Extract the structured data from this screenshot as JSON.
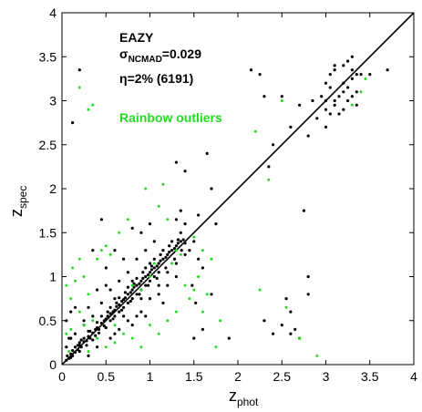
{
  "chart_data": {
    "type": "scatter",
    "title": "",
    "x_axis": {
      "label_main": "z",
      "label_sub": "phot",
      "range": [
        0,
        4
      ],
      "ticks": [
        "0",
        "0.5",
        "1",
        "1.5",
        "2",
        "2.5",
        "3",
        "3.5",
        "4"
      ]
    },
    "y_axis": {
      "label_main": "z",
      "label_sub": "spec",
      "range": [
        0,
        4
      ],
      "ticks": [
        "0",
        "0.5",
        "1",
        "1.5",
        "2",
        "2.5",
        "3",
        "3.5",
        "4"
      ]
    },
    "grid": false,
    "reference_line": {
      "x": [
        0,
        4
      ],
      "y": [
        0,
        4
      ]
    },
    "annotations": {
      "method": "EAZY",
      "sigma_symbol": "σ",
      "sigma_sub": "NCMAD",
      "sigma_value": "=0.029",
      "eta_symbol": "η",
      "eta_value": "=2% (6191)",
      "outlier_label": "Rainbow outliers"
    },
    "colors": {
      "main": "#000000",
      "outliers": "#22dd22"
    },
    "series": [
      {
        "name": "",
        "color": "#000000",
        "points": [
          [
            0.05,
            0.05
          ],
          [
            0.08,
            0.07
          ],
          [
            0.1,
            0.12
          ],
          [
            0.12,
            0.1
          ],
          [
            0.15,
            0.14
          ],
          [
            0.18,
            0.17
          ],
          [
            0.2,
            0.22
          ],
          [
            0.22,
            0.2
          ],
          [
            0.25,
            0.26
          ],
          [
            0.28,
            0.27
          ],
          [
            0.3,
            0.32
          ],
          [
            0.32,
            0.3
          ],
          [
            0.35,
            0.36
          ],
          [
            0.38,
            0.4
          ],
          [
            0.4,
            0.42
          ],
          [
            0.42,
            0.4
          ],
          [
            0.45,
            0.47
          ],
          [
            0.48,
            0.5
          ],
          [
            0.5,
            0.52
          ],
          [
            0.52,
            0.55
          ],
          [
            0.55,
            0.58
          ],
          [
            0.58,
            0.6
          ],
          [
            0.6,
            0.62
          ],
          [
            0.62,
            0.66
          ],
          [
            0.65,
            0.68
          ],
          [
            0.68,
            0.72
          ],
          [
            0.7,
            0.74
          ],
          [
            0.72,
            0.76
          ],
          [
            0.75,
            0.8
          ],
          [
            0.78,
            0.82
          ],
          [
            0.8,
            0.85
          ],
          [
            0.82,
            0.88
          ],
          [
            0.85,
            0.9
          ],
          [
            0.88,
            0.92
          ],
          [
            0.9,
            0.95
          ],
          [
            0.92,
            0.98
          ],
          [
            0.95,
            1.0
          ],
          [
            0.98,
            1.02
          ],
          [
            1.0,
            1.05
          ],
          [
            1.02,
            1.08
          ],
          [
            1.05,
            1.1
          ],
          [
            1.08,
            1.12
          ],
          [
            1.1,
            1.15
          ],
          [
            1.12,
            1.18
          ],
          [
            1.15,
            1.2
          ],
          [
            1.18,
            1.22
          ],
          [
            1.2,
            1.25
          ],
          [
            1.22,
            1.28
          ],
          [
            1.25,
            1.3
          ],
          [
            1.28,
            1.32
          ],
          [
            1.3,
            1.35
          ],
          [
            1.32,
            1.38
          ],
          [
            1.35,
            1.4
          ],
          [
            1.38,
            1.42
          ],
          [
            0.5,
            0.42
          ],
          [
            0.55,
            0.5
          ],
          [
            0.6,
            0.55
          ],
          [
            0.65,
            0.6
          ],
          [
            0.7,
            0.65
          ],
          [
            0.75,
            0.7
          ],
          [
            0.8,
            0.75
          ],
          [
            0.85,
            0.8
          ],
          [
            0.9,
            0.85
          ],
          [
            0.95,
            0.9
          ],
          [
            1.0,
            0.95
          ],
          [
            1.05,
            1.0
          ],
          [
            1.1,
            1.05
          ],
          [
            0.4,
            0.48
          ],
          [
            0.45,
            0.55
          ],
          [
            0.55,
            0.65
          ],
          [
            0.65,
            0.76
          ],
          [
            0.75,
            0.88
          ],
          [
            0.85,
            0.98
          ],
          [
            0.95,
            1.1
          ],
          [
            1.05,
            1.2
          ],
          [
            1.15,
            1.3
          ],
          [
            0.3,
            0.38
          ],
          [
            0.35,
            0.28
          ],
          [
            0.25,
            0.3
          ],
          [
            0.2,
            0.15
          ],
          [
            0.15,
            0.2
          ],
          [
            0.1,
            0.08
          ],
          [
            0.06,
            0.1
          ],
          [
            0.12,
            0.16
          ],
          [
            0.18,
            0.22
          ],
          [
            0.22,
            0.28
          ],
          [
            0.28,
            0.22
          ],
          [
            0.32,
            0.38
          ],
          [
            0.38,
            0.33
          ],
          [
            0.42,
            0.36
          ],
          [
            0.48,
            0.44
          ],
          [
            0.52,
            0.6
          ],
          [
            0.58,
            0.52
          ],
          [
            0.62,
            0.7
          ],
          [
            0.68,
            0.62
          ],
          [
            0.72,
            0.82
          ],
          [
            0.78,
            0.72
          ],
          [
            0.82,
            0.92
          ],
          [
            0.88,
            0.8
          ],
          [
            0.92,
            1.05
          ],
          [
            0.98,
            0.9
          ],
          [
            1.02,
            1.12
          ],
          [
            1.08,
            0.98
          ],
          [
            1.12,
            1.25
          ],
          [
            1.18,
            1.1
          ],
          [
            1.22,
            1.35
          ],
          [
            1.28,
            1.2
          ],
          [
            1.32,
            1.42
          ],
          [
            1.36,
            1.3
          ],
          [
            1.4,
            1.38
          ],
          [
            0.6,
            0.75
          ],
          [
            0.7,
            0.55
          ],
          [
            0.8,
            0.95
          ],
          [
            0.9,
            0.75
          ],
          [
            1.0,
            1.15
          ],
          [
            1.1,
            0.9
          ],
          [
            1.2,
            1.05
          ],
          [
            1.3,
            1.15
          ],
          [
            1.25,
            1.4
          ],
          [
            1.35,
            1.5
          ],
          [
            1.4,
            1.25
          ],
          [
            1.45,
            1.3
          ],
          [
            1.5,
            1.4
          ],
          [
            1.55,
            1.2
          ],
          [
            1.48,
            0.9
          ],
          [
            1.52,
            0.7
          ],
          [
            1.6,
            1.1
          ],
          [
            0.75,
            1.05
          ],
          [
            0.85,
            1.2
          ],
          [
            0.65,
            0.95
          ],
          [
            0.55,
            0.85
          ],
          [
            0.95,
            1.3
          ],
          [
            1.05,
            1.4
          ],
          [
            0.45,
            0.7
          ],
          [
            0.35,
            0.55
          ],
          [
            0.25,
            0.45
          ],
          [
            0.55,
            0.3
          ],
          [
            0.65,
            0.4
          ],
          [
            0.75,
            0.5
          ],
          [
            0.85,
            0.55
          ],
          [
            0.9,
            0.6
          ],
          [
            1.0,
            0.75
          ],
          [
            1.1,
            0.8
          ],
          [
            1.2,
            0.9
          ],
          [
            1.3,
            1.0
          ],
          [
            0.5,
            1.1
          ],
          [
            0.6,
            0.35
          ],
          [
            0.8,
            0.45
          ],
          [
            0.95,
            0.55
          ],
          [
            1.15,
            0.7
          ],
          [
            0.2,
            3.35
          ],
          [
            0.15,
            0.35
          ],
          [
            0.3,
            0.1
          ],
          [
            0.4,
            0.2
          ],
          [
            0.1,
            0.3
          ],
          [
            0.05,
            0.2
          ],
          [
            0.5,
            0.9
          ],
          [
            0.7,
            1.2
          ],
          [
            0.3,
            0.65
          ],
          [
            0.4,
            0.85
          ],
          [
            0.45,
            1.65
          ],
          [
            0.9,
            1.5
          ],
          [
            1.0,
            1.6
          ],
          [
            1.4,
            1.6
          ],
          [
            1.55,
            1.7
          ],
          [
            1.6,
            0.4
          ],
          [
            1.5,
            0.3
          ],
          [
            1.7,
            0.8
          ],
          [
            0.8,
            1.55
          ],
          [
            1.3,
            1.65
          ],
          [
            1.65,
            2.4
          ],
          [
            1.75,
            1.6
          ],
          [
            1.35,
            1.75
          ],
          [
            0.35,
            1.3
          ],
          [
            0.6,
            1.3
          ],
          [
            1.7,
            2.0
          ],
          [
            1.9,
            0.3
          ],
          [
            2.4,
            0.35
          ],
          [
            2.3,
            0.5
          ],
          [
            2.5,
            0.45
          ],
          [
            2.6,
            0.6
          ],
          [
            2.65,
            0.4
          ],
          [
            2.7,
            0.3
          ],
          [
            2.8,
            0.8
          ],
          [
            2.6,
            2.7
          ],
          [
            2.3,
            3.05
          ],
          [
            2.5,
            3.05
          ],
          [
            2.4,
            2.5
          ],
          [
            2.35,
            2.25
          ],
          [
            2.8,
            1.0
          ],
          [
            2.55,
            0.75
          ],
          [
            1.3,
            2.3
          ],
          [
            1.4,
            2.2
          ],
          [
            0.15,
            0.65
          ],
          [
            0.25,
            0.5
          ],
          [
            0.05,
            0.5
          ],
          [
            0.08,
            0.3
          ],
          [
            0.2,
            0.25
          ],
          [
            0.1,
            0.6
          ],
          [
            0.12,
            2.75
          ],
          [
            2.6,
            0.35
          ],
          [
            3.35,
            2.95
          ],
          [
            2.9,
            2.8
          ],
          [
            3.0,
            2.9
          ],
          [
            3.05,
            2.85
          ],
          [
            3.1,
            3.0
          ],
          [
            3.15,
            3.05
          ],
          [
            3.2,
            3.1
          ],
          [
            3.25,
            3.15
          ],
          [
            3.3,
            3.25
          ],
          [
            3.35,
            3.3
          ],
          [
            3.0,
            3.2
          ],
          [
            3.1,
            3.35
          ],
          [
            3.2,
            3.4
          ],
          [
            3.25,
            3.45
          ],
          [
            3.3,
            3.05
          ],
          [
            3.2,
            2.9
          ],
          [
            3.15,
            2.85
          ],
          [
            2.95,
            3.05
          ],
          [
            3.05,
            3.15
          ],
          [
            3.1,
            2.95
          ],
          [
            3.25,
            3.0
          ],
          [
            3.35,
            3.1
          ],
          [
            3.2,
            3.2
          ],
          [
            3.3,
            3.35
          ],
          [
            3.4,
            3.3
          ],
          [
            2.75,
            1.75
          ],
          [
            3.5,
            3.3
          ],
          [
            3.7,
            3.35
          ],
          [
            2.8,
            2.6
          ],
          [
            3.0,
            3.0
          ],
          [
            3.05,
            3.3
          ],
          [
            2.85,
            3.0
          ],
          [
            2.7,
            2.95
          ],
          [
            3.0,
            2.7
          ],
          [
            2.25,
            3.3
          ],
          [
            2.15,
            3.35
          ],
          [
            3.1,
            3.4
          ],
          [
            3.3,
            3.5
          ]
        ]
      },
      {
        "name": "Rainbow outliers",
        "color": "#22dd22",
        "points": [
          [
            0.2,
            3.15
          ],
          [
            0.3,
            2.9
          ],
          [
            0.35,
            2.95
          ],
          [
            0.5,
            1.35
          ],
          [
            0.4,
            1.2
          ],
          [
            0.45,
            1.3
          ],
          [
            0.55,
            1.25
          ],
          [
            0.25,
            1.0
          ],
          [
            0.15,
            0.95
          ],
          [
            0.3,
            0.8
          ],
          [
            0.1,
            0.75
          ],
          [
            0.2,
            0.6
          ],
          [
            0.05,
            0.9
          ],
          [
            0.12,
            1.1
          ],
          [
            0.25,
            0.45
          ],
          [
            0.35,
            0.5
          ],
          [
            0.4,
            0.3
          ],
          [
            0.5,
            0.2
          ],
          [
            0.6,
            0.25
          ],
          [
            0.7,
            0.35
          ],
          [
            0.8,
            0.3
          ],
          [
            0.9,
            0.2
          ],
          [
            1.0,
            0.45
          ],
          [
            1.1,
            0.35
          ],
          [
            1.2,
            0.5
          ],
          [
            1.3,
            0.6
          ],
          [
            1.4,
            0.9
          ],
          [
            1.45,
            0.75
          ],
          [
            1.5,
            0.85
          ],
          [
            1.55,
            1.0
          ],
          [
            1.6,
            0.6
          ],
          [
            1.65,
            0.8
          ],
          [
            1.7,
            1.2
          ],
          [
            1.75,
            0.2
          ],
          [
            1.8,
            0.5
          ],
          [
            1.6,
            1.3
          ],
          [
            1.5,
            1.45
          ],
          [
            1.2,
            1.65
          ],
          [
            1.1,
            1.8
          ],
          [
            0.95,
            2.0
          ],
          [
            1.15,
            2.05
          ],
          [
            0.75,
            1.65
          ],
          [
            0.65,
            1.5
          ],
          [
            1.35,
            1.25
          ],
          [
            1.25,
            1.15
          ],
          [
            1.3,
            1.3
          ],
          [
            1.0,
            1.0
          ],
          [
            0.9,
            0.85
          ],
          [
            0.8,
            0.9
          ],
          [
            1.05,
            1.15
          ],
          [
            2.25,
            0.85
          ],
          [
            2.55,
            0.65
          ],
          [
            2.7,
            0.3
          ],
          [
            2.35,
            2.1
          ],
          [
            2.5,
            3.0
          ],
          [
            2.2,
            2.65
          ],
          [
            3.45,
            3.25
          ],
          [
            3.4,
            3.1
          ],
          [
            3.3,
            2.95
          ],
          [
            2.9,
            0.1
          ],
          [
            0.1,
            0.4
          ],
          [
            0.05,
            0.35
          ],
          [
            0.08,
            0.15
          ],
          [
            0.3,
            0.15
          ],
          [
            0.6,
            0.45
          ],
          [
            0.2,
            1.2
          ]
        ]
      }
    ]
  }
}
